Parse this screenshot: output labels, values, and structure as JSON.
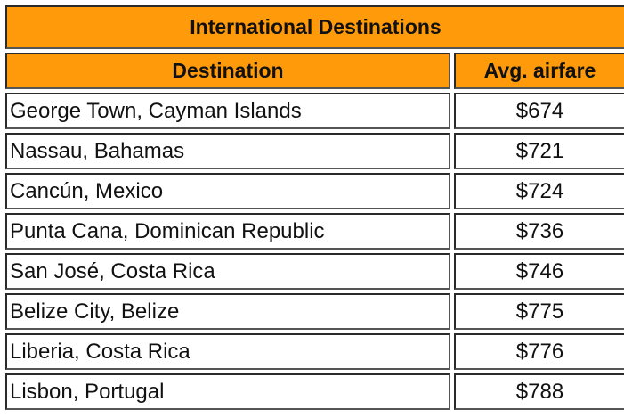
{
  "table": {
    "title": "International Destinations",
    "headers": [
      "Destination",
      "Avg. airfare"
    ],
    "rows": [
      {
        "destination": "George Town, Cayman Islands",
        "airfare": "$674"
      },
      {
        "destination": "Nassau, Bahamas",
        "airfare": "$721"
      },
      {
        "destination": "Cancún, Mexico",
        "airfare": "$724"
      },
      {
        "destination": "Punta Cana, Dominican Republic",
        "airfare": "$736"
      },
      {
        "destination": "San José, Costa Rica",
        "airfare": "$746"
      },
      {
        "destination": "Belize City, Belize",
        "airfare": "$775"
      },
      {
        "destination": "Liberia, Costa Rica",
        "airfare": "$776"
      },
      {
        "destination": "Lisbon, Portugal",
        "airfare": "$788"
      }
    ],
    "header_color": "#ff9a0a"
  }
}
